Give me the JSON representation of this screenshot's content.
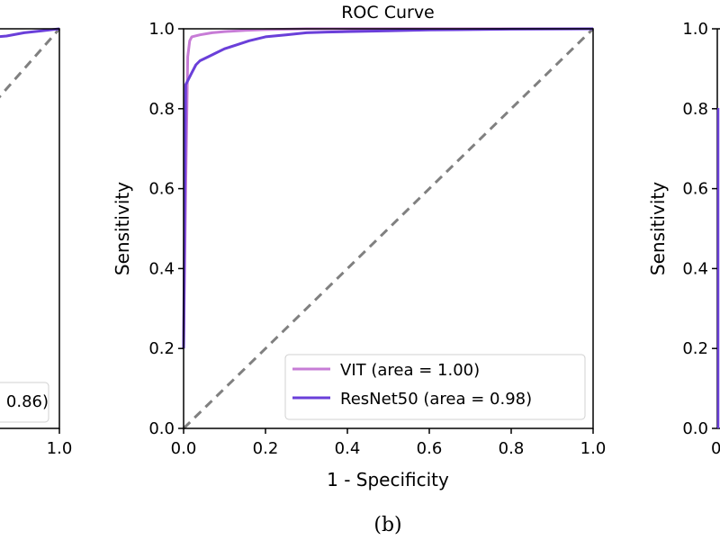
{
  "caption": "(b)",
  "colors": {
    "vit": "#c77cd6",
    "resnet50": "#6a3fd9",
    "diagonal": "#808080",
    "axes": "#000000"
  },
  "chart_data": [
    {
      "type": "line",
      "title": "",
      "xlabel": "",
      "ylabel": "",
      "xlim": [
        0,
        1
      ],
      "ylim": [
        0,
        1
      ],
      "y_tick_labels": [],
      "x_tick_labels": [
        "1.0"
      ],
      "legend_fragment": "0.86)",
      "series": [
        {
          "color": "#6a3fd9",
          "x": [
            0.0,
            0.3,
            0.55,
            0.7,
            0.8,
            0.85,
            0.9,
            0.95,
            1.0
          ],
          "y": [
            0.965,
            0.97,
            0.972,
            0.975,
            0.978,
            0.982,
            0.99,
            0.995,
            1.0
          ]
        }
      ],
      "diagonal": true
    },
    {
      "type": "line",
      "title": "ROC Curve",
      "xlabel": "1 - Specificity",
      "ylabel": "Sensitivity",
      "xlim": [
        0,
        1
      ],
      "ylim": [
        0,
        1
      ],
      "x_ticks": [
        0.0,
        0.2,
        0.4,
        0.6,
        0.8,
        1.0
      ],
      "y_ticks": [
        0.0,
        0.2,
        0.4,
        0.6,
        0.8,
        1.0
      ],
      "x_tick_labels": [
        "0.0",
        "0.2",
        "0.4",
        "0.6",
        "0.8",
        "1.0"
      ],
      "y_tick_labels": [
        "0.0",
        "0.2",
        "0.4",
        "0.6",
        "0.8",
        "1.0"
      ],
      "legend": "bottom-right",
      "series": [
        {
          "name": "VIT (area = 1.00)",
          "color": "#c77cd6",
          "x": [
            0.0,
            0.005,
            0.01,
            0.015,
            0.02,
            0.04,
            0.07,
            0.1,
            0.15,
            0.2,
            0.3,
            0.5,
            1.0
          ],
          "y": [
            0.2,
            0.6,
            0.93,
            0.97,
            0.98,
            0.985,
            0.99,
            0.993,
            0.996,
            0.998,
            1.0,
            1.0,
            1.0
          ]
        },
        {
          "name": "ResNet50 (area = 0.98)",
          "color": "#6a3fd9",
          "x": [
            0.0,
            0.003,
            0.005,
            0.01,
            0.02,
            0.03,
            0.04,
            0.06,
            0.08,
            0.1,
            0.13,
            0.16,
            0.2,
            0.25,
            0.3,
            0.35,
            0.4,
            0.5,
            0.6,
            0.8,
            1.0
          ],
          "y": [
            0.2,
            0.6,
            0.86,
            0.87,
            0.89,
            0.91,
            0.92,
            0.93,
            0.94,
            0.95,
            0.96,
            0.97,
            0.98,
            0.985,
            0.99,
            0.992,
            0.993,
            0.995,
            0.997,
            0.999,
            1.0
          ]
        }
      ],
      "diagonal": true
    },
    {
      "type": "line",
      "title": "",
      "xlabel": "",
      "ylabel": "Sensitivity",
      "xlim": [
        0,
        1
      ],
      "ylim": [
        0,
        1
      ],
      "y_ticks": [
        0.0,
        0.2,
        0.4,
        0.6,
        0.8,
        1.0
      ],
      "y_tick_labels": [
        "0.0",
        "0.2",
        "0.4",
        "0.6",
        "0.8",
        "1.0"
      ],
      "x_tick_labels": [
        "0."
      ],
      "series": [],
      "diagonal": false
    }
  ]
}
